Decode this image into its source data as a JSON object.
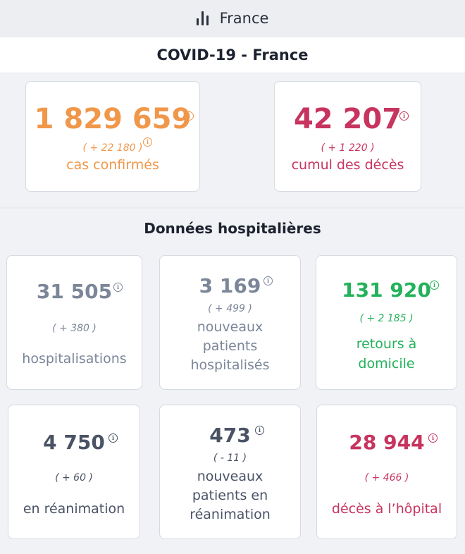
{
  "topbar": {
    "title": "France",
    "icon": "bar-chart-icon"
  },
  "header": {
    "title": "COVID-19 - France"
  },
  "main_stats": [
    {
      "value": "1 829 659",
      "delta": "( + 22 180 )",
      "label": "cas confirmés",
      "color": "#f0974a"
    },
    {
      "value": "42 207",
      "delta": "( + 1 220 )",
      "label": "cumul des décès",
      "color": "#c7345f"
    }
  ],
  "hospital": {
    "title": "Données hospitalières",
    "cards": [
      {
        "value": "31 505",
        "delta": "( + 380 )",
        "label": "hospitalisations"
      },
      {
        "value": "3 169",
        "delta": "( + 499 )",
        "label_lines": [
          "nouveaux",
          "patients",
          "hospitalisés"
        ]
      },
      {
        "value": "131 920",
        "delta": "( + 2 185 )",
        "label_lines": [
          "retours à",
          "domicile"
        ]
      },
      {
        "value": "4 750",
        "delta": "( + 60 )",
        "label": "en réanimation"
      },
      {
        "value": "473",
        "delta": "( - 11 )",
        "label_lines": [
          "nouveaux",
          "patients en",
          "réanimation"
        ]
      },
      {
        "value": "28 944",
        "delta": "( + 466 )",
        "label": "décès à l’hôpital"
      }
    ]
  },
  "info_symbol": "i"
}
